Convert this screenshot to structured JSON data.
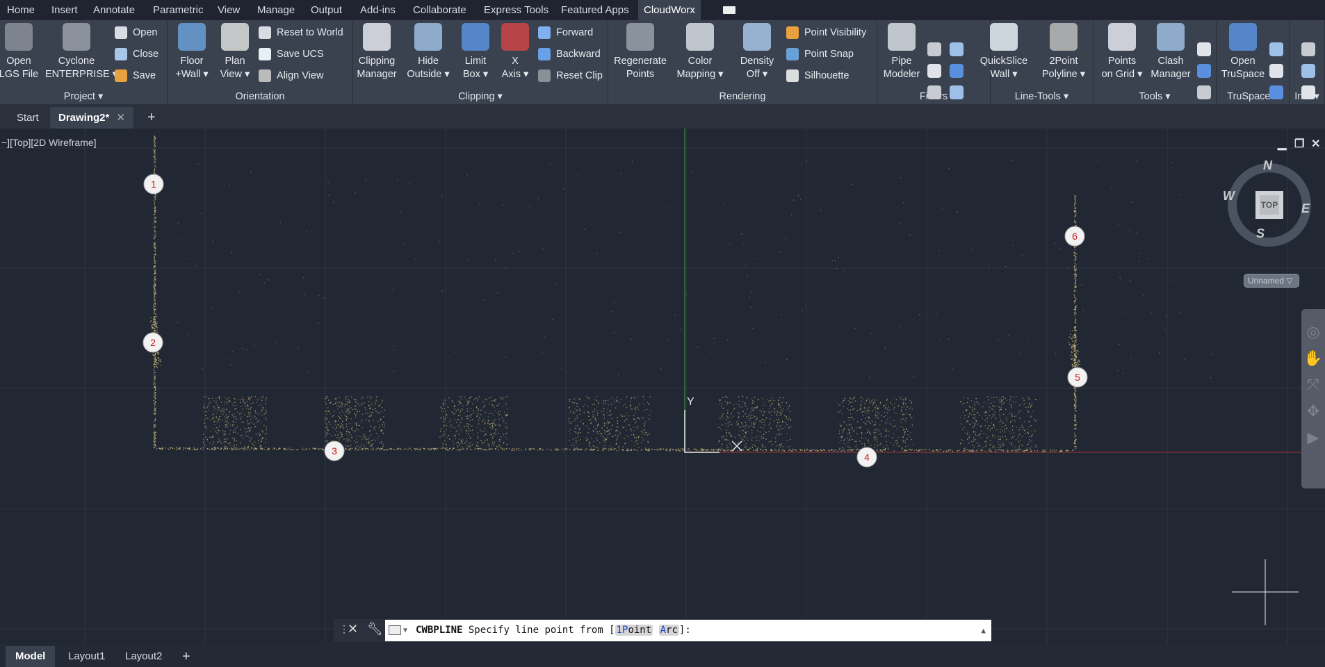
{
  "menu": {
    "tabs": [
      "Home",
      "Insert",
      "Annotate",
      "Parametric",
      "View",
      "Manage",
      "Output",
      "Add-ins",
      "Collaborate",
      "Express Tools",
      "Featured Apps",
      "CloudWorx"
    ],
    "active": "CloudWorx"
  },
  "ribbon": {
    "panels": [
      {
        "label": "Project ▾",
        "big": [
          [
            "Open",
            "LGS File"
          ],
          [
            "Cyclone",
            "ENTERPRISE ▾"
          ]
        ],
        "small": [
          "Open",
          "Close",
          "Save"
        ]
      },
      {
        "label": "Orientation",
        "big": [
          [
            "Floor",
            "+Wall ▾"
          ],
          [
            "Plan",
            "View ▾"
          ]
        ],
        "small": [
          "Reset to World",
          "Save UCS",
          "Align View"
        ]
      },
      {
        "label": "Clipping ▾",
        "big": [
          [
            "Clipping",
            "Manager"
          ],
          [
            "Hide",
            "Outside ▾"
          ],
          [
            "Limit",
            "Box ▾"
          ],
          [
            "X",
            "Axis ▾"
          ]
        ],
        "small": [
          "Forward",
          "Backward",
          "Reset Clip"
        ]
      },
      {
        "label": "Rendering",
        "big": [
          [
            "Regenerate",
            "Points"
          ],
          [
            "Color",
            "Mapping ▾"
          ],
          [
            "Density",
            "Off ▾"
          ]
        ],
        "small": [
          "Point Visibility",
          "Point Snap",
          "Silhouette"
        ]
      },
      {
        "label": "Fitters",
        "big": [
          [
            "Pipe",
            "Modeler"
          ]
        ],
        "small": []
      },
      {
        "label": "Line-Tools ▾",
        "big": [
          [
            "QuickSlice",
            "Wall ▾"
          ],
          [
            "2Point",
            "Polyline ▾"
          ]
        ],
        "small": []
      },
      {
        "label": "Tools ▾",
        "big": [
          [
            "Points",
            "on Grid ▾"
          ],
          [
            "Clash",
            "Manager"
          ]
        ],
        "small": []
      },
      {
        "label": "TruSpace ▾",
        "big": [
          [
            "Open",
            "TruSpace"
          ]
        ],
        "small": []
      },
      {
        "label": "Info ▾",
        "big": [],
        "small": []
      }
    ],
    "accent": "#5aa0e6"
  },
  "filetabs": {
    "tabs": [
      "Start",
      "Drawing2*"
    ],
    "active": "Drawing2*",
    "close": "✕",
    "add": "+"
  },
  "viewport": {
    "label": "−][Top][2D Wireframe]",
    "markers": [
      "1",
      "2",
      "3",
      "4",
      "5",
      "6"
    ],
    "ucs_y": "Y",
    "viewcube": {
      "face": "TOP",
      "n": "N",
      "s": "S",
      "e": "E",
      "w": "W",
      "ucs": "Unnamed"
    },
    "pointcloud_color": "#c9b77a"
  },
  "command": {
    "name": "CWBPLINE",
    "prompt": "Specify line point from [",
    "opt1_key": "1P",
    "opt1_rest": "oint",
    "opt2_key": "A",
    "opt2_rest": "rc",
    "end": "]:"
  },
  "layouttabs": {
    "tabs": [
      "Model",
      "Layout1",
      "Layout2"
    ],
    "active": "Model",
    "add": "+"
  }
}
